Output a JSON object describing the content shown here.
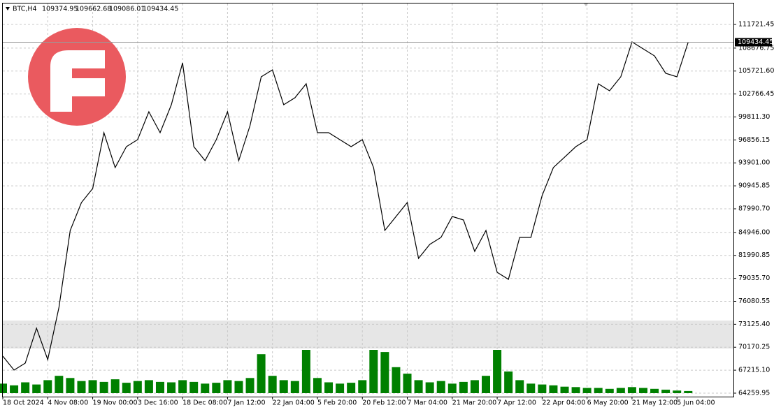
{
  "chart_data": {
    "type": "line",
    "symbol": "BTC,H4",
    "open": 109374.95,
    "high": 109662.68,
    "low": 109086.01,
    "close": 109434.45,
    "last_price": 109434.45,
    "highlight_zone": [
      69999,
      73604
    ],
    "grid": true,
    "categories": [
      "18 Oct 2024",
      null,
      null,
      null,
      "4 Nov 08:00",
      null,
      null,
      null,
      "19 Nov 00:00",
      null,
      null,
      null,
      "3 Dec 16:00",
      null,
      null,
      null,
      "18 Dec 08:00",
      null,
      null,
      null,
      "7 Jan 12:00",
      null,
      null,
      null,
      "22 Jan 04:00",
      null,
      null,
      null,
      "5 Feb 20:00",
      null,
      null,
      null,
      "20 Feb 12:00",
      null,
      null,
      null,
      "7 Mar 04:00",
      null,
      null,
      null,
      "21 Mar 20:00",
      null,
      null,
      null,
      "7 Apr 12:00",
      null,
      null,
      null,
      "22 Apr 04:00",
      null,
      null,
      null,
      "6 May 20:00",
      null,
      null,
      null,
      "21 May 12:00",
      null,
      null,
      null,
      "5 Jun 04:00",
      null
    ],
    "series": [
      {
        "name": "BTC",
        "color": "#000000",
        "values": [
          69023,
          67225,
          68124,
          72619,
          68574,
          75316,
          85203,
          88799,
          90597,
          97788,
          93294,
          95990,
          96889,
          100485,
          97788,
          101384,
          106777,
          95990,
          94192,
          96889,
          100485,
          94192,
          98687,
          104979,
          105878,
          101384,
          102283,
          104080,
          97788,
          97788,
          96889,
          95990,
          96889,
          93294,
          85203,
          87001,
          88799,
          81608,
          83406,
          84305,
          87001,
          86552,
          82507,
          85203,
          79810,
          78911,
          84305,
          84305,
          89698,
          93294,
          94642,
          95990,
          96889,
          104080,
          103181,
          104979,
          109474,
          108575,
          107676,
          105429,
          104979,
          109434.45
        ]
      },
      {
        "name": "Volume",
        "color": "#008000",
        "axis": "y2",
        "values": [
          22,
          18,
          25,
          20,
          30,
          40,
          35,
          28,
          30,
          26,
          32,
          24,
          28,
          30,
          26,
          25,
          30,
          26,
          22,
          24,
          30,
          28,
          35,
          90,
          40,
          30,
          28,
          100,
          35,
          25,
          22,
          24,
          30,
          100,
          95,
          60,
          45,
          30,
          25,
          28,
          22,
          26,
          30,
          40,
          100,
          50,
          30,
          22,
          20,
          18,
          15,
          14,
          12,
          12,
          10,
          12,
          14,
          12,
          10,
          8,
          6,
          5
        ]
      }
    ],
    "ylim": [
      63810,
      114418
    ],
    "y2lim": [
      0,
      100
    ],
    "yticks": [
      {
        "value": 111721.45,
        "label": "111721.45"
      },
      {
        "value": 108676.75,
        "label": "108676.75"
      },
      {
        "value": 105721.6,
        "label": "105721.60"
      },
      {
        "value": 102766.45,
        "label": "102766.45"
      },
      {
        "value": 99811.3,
        "label": "99811.30"
      },
      {
        "value": 96856.15,
        "label": "96856.15"
      },
      {
        "value": 93901,
        "label": "93901.00"
      },
      {
        "value": 90945.85,
        "label": "90945.85"
      },
      {
        "value": 87990.7,
        "label": "87990.70"
      },
      {
        "value": 84946,
        "label": "84946.00"
      },
      {
        "value": 81990.85,
        "label": "81990.85"
      },
      {
        "value": 79035.7,
        "label": "79035.70"
      },
      {
        "value": 76080.55,
        "label": "76080.55"
      },
      {
        "value": 73125.4,
        "label": "73125.40"
      },
      {
        "value": 70170.25,
        "label": "70170.25"
      },
      {
        "value": 67215.1,
        "label": "67215.10"
      },
      {
        "value": 64259.95,
        "label": "64259.95"
      }
    ]
  }
}
